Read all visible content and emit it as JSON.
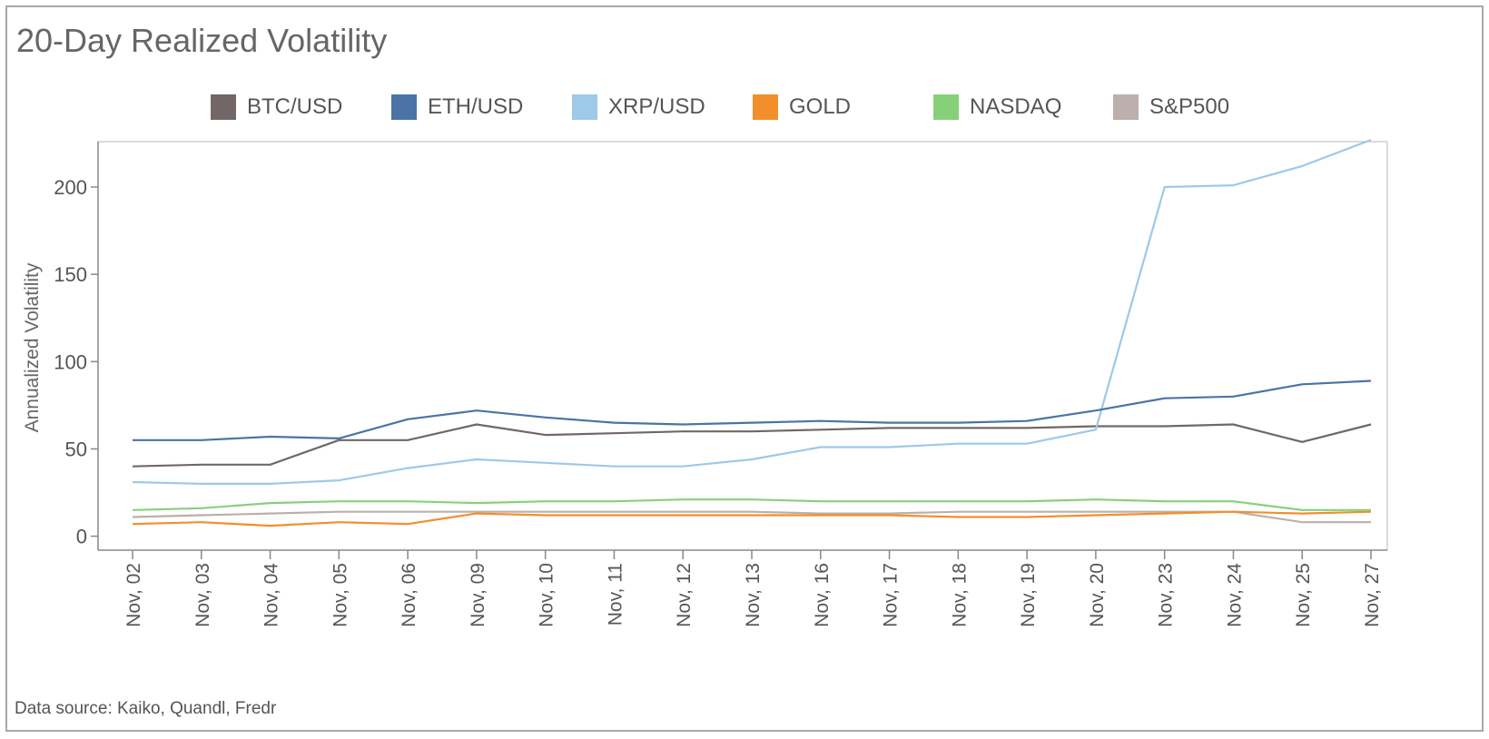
{
  "title": "20-Day Realized Volatility",
  "source": "Data source: Kaiko, Quandl, Fredr",
  "chart_data": {
    "type": "line",
    "ylabel": "Annualized Volatility",
    "xlabel": "",
    "ylim": [
      -8,
      226
    ],
    "yticks": [
      0,
      50,
      100,
      150,
      200
    ],
    "categories": [
      "Nov, 02",
      "Nov, 03",
      "Nov, 04",
      "Nov, 05",
      "Nov, 06",
      "Nov, 09",
      "Nov, 10",
      "Nov, 11",
      "Nov, 12",
      "Nov, 13",
      "Nov, 16",
      "Nov, 17",
      "Nov, 18",
      "Nov, 19",
      "Nov, 20",
      "Nov, 23",
      "Nov, 24",
      "Nov, 25",
      "Nov, 27"
    ],
    "legend_position": "top",
    "grid": false,
    "series": [
      {
        "name": "BTC/USD",
        "color": "#726766",
        "values": [
          40,
          41,
          41,
          55,
          55,
          64,
          58,
          59,
          60,
          60,
          61,
          62,
          62,
          62,
          63,
          63,
          64,
          54,
          64
        ]
      },
      {
        "name": "ETH/USD",
        "color": "#4a74a5",
        "values": [
          55,
          55,
          57,
          56,
          67,
          72,
          68,
          65,
          64,
          65,
          66,
          65,
          65,
          66,
          72,
          79,
          80,
          87,
          89
        ]
      },
      {
        "name": "XRP/USD",
        "color": "#9ec9e7",
        "values": [
          31,
          30,
          30,
          32,
          39,
          44,
          42,
          40,
          40,
          44,
          51,
          51,
          53,
          53,
          61,
          200,
          201,
          212,
          227
        ]
      },
      {
        "name": "GOLD",
        "color": "#f28f2c",
        "values": [
          7,
          8,
          6,
          8,
          7,
          13,
          12,
          12,
          12,
          12,
          12,
          12,
          11,
          11,
          12,
          13,
          14,
          13,
          14
        ]
      },
      {
        "name": "NASDAQ",
        "color": "#87d07a",
        "values": [
          15,
          16,
          19,
          20,
          20,
          19,
          20,
          20,
          21,
          21,
          20,
          20,
          20,
          20,
          21,
          20,
          20,
          15,
          15
        ]
      },
      {
        "name": "S&P500",
        "color": "#bbb0ab",
        "values": [
          11,
          12,
          13,
          14,
          14,
          14,
          14,
          14,
          14,
          14,
          13,
          13,
          14,
          14,
          14,
          14,
          14,
          8,
          8
        ]
      }
    ]
  }
}
